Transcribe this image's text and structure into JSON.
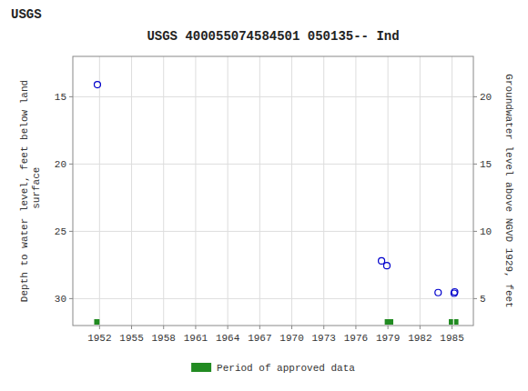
{
  "chart_data": {
    "type": "scatter",
    "header": "USGS",
    "title": "USGS 400055074584501 050135-- Ind",
    "x": [
      1951.8,
      1978.4,
      1978.9,
      1983.7,
      1985.2,
      1985.25
    ],
    "series": [
      {
        "values": [
          14.1,
          27.2,
          27.55,
          29.55,
          29.6,
          29.5
        ],
        "color": "#0000cc",
        "marker": "circle"
      }
    ],
    "approved_periods": {
      "name": "Period of approved data",
      "color": "#228B22",
      "start": [
        1951.5,
        1978.7,
        1984.7,
        1985.2
      ],
      "end": [
        1952.0,
        1979.5,
        1985.1,
        1985.6
      ]
    },
    "xlim": [
      1949.5,
      1987.0
    ],
    "xticks": [
      1952,
      1955,
      1958,
      1961,
      1964,
      1967,
      1970,
      1973,
      1976,
      1979,
      1982,
      1985
    ],
    "ylim": [
      32,
      12
    ],
    "yticks": [
      15,
      20,
      25,
      30
    ],
    "y2lim": [
      3,
      23
    ],
    "y2ticks": [
      5,
      10,
      15,
      20
    ],
    "ylabel": "Depth to water level, feet below land\n surface",
    "y2label": "Groundwater level above NGVD 1929, feet",
    "grid": true,
    "legend": "bottom"
  }
}
